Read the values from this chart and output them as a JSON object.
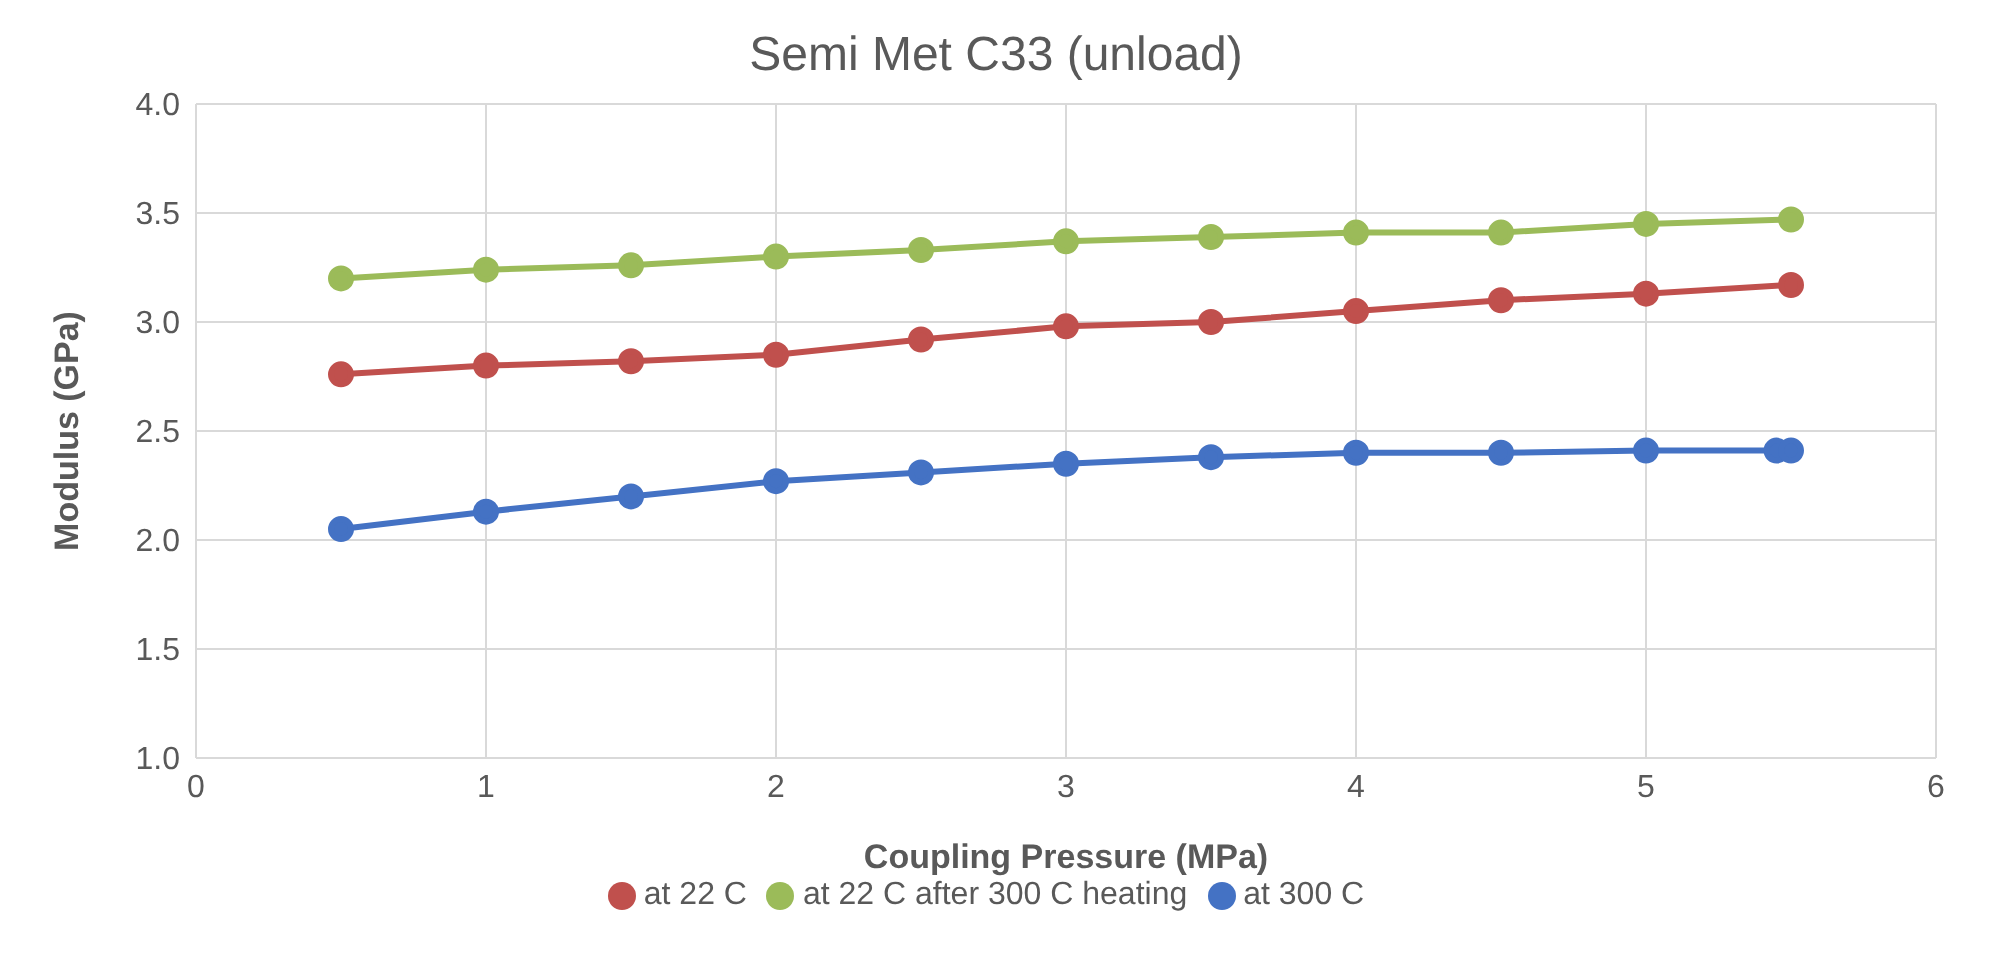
{
  "chart_data": {
    "type": "line",
    "title": "Semi Met C33 (unload)",
    "xlabel": "Coupling Pressure (MPa)",
    "ylabel": "Modulus (GPa)",
    "xlim": [
      0,
      6
    ],
    "xticks": [
      0,
      1,
      2,
      3,
      4,
      5,
      6
    ],
    "ylim": [
      1.0,
      4.0
    ],
    "yticks": [
      {
        "value": 1.0,
        "label": "1.0"
      },
      {
        "value": 1.5,
        "label": "1.5"
      },
      {
        "value": 2.0,
        "label": "2.0"
      },
      {
        "value": 2.5,
        "label": "2.5"
      },
      {
        "value": 3.0,
        "label": "3.0"
      },
      {
        "value": 3.5,
        "label": "3.5"
      },
      {
        "value": 4.0,
        "label": "4.0"
      }
    ],
    "grid": true,
    "legend": "bottom",
    "marker": "circle",
    "line_style": "solid",
    "series": [
      {
        "name": "at 300 C",
        "color": "#4472c4",
        "x": [
          0.5,
          1,
          1.5,
          2,
          2.5,
          3,
          3.5,
          4,
          4.5,
          5,
          5.45,
          5.5
        ],
        "values": [
          2.05,
          2.13,
          2.2,
          2.27,
          2.31,
          2.35,
          2.38,
          2.4,
          2.4,
          2.41,
          2.41,
          2.41
        ]
      },
      {
        "name": "at 22 C",
        "color": "#c0504d",
        "x": [
          0.5,
          1,
          1.5,
          2,
          2.5,
          3,
          3.5,
          4,
          4.5,
          5,
          5.5
        ],
        "values": [
          2.76,
          2.8,
          2.82,
          2.85,
          2.92,
          2.98,
          3.0,
          3.05,
          3.1,
          3.13,
          3.17
        ]
      },
      {
        "name": "at 22 C after 300 C heating",
        "color": "#9bbb59",
        "x": [
          0.5,
          1,
          1.5,
          2,
          2.5,
          3,
          3.5,
          4,
          4.5,
          5,
          5.5
        ],
        "values": [
          3.2,
          3.24,
          3.26,
          3.3,
          3.33,
          3.37,
          3.39,
          3.41,
          3.41,
          3.45,
          3.47
        ]
      }
    ]
  }
}
